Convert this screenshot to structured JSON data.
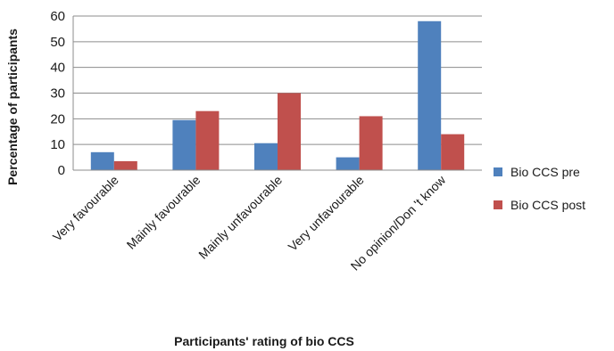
{
  "chart_data": {
    "type": "bar",
    "title": "",
    "xlabel": "Participants' rating of bio CCS",
    "ylabel": "Percentage of participants",
    "ylim": [
      0,
      60
    ],
    "yticks": [
      0,
      10,
      20,
      30,
      40,
      50,
      60
    ],
    "grid": true,
    "legend_position": "right",
    "categories": [
      "Very favourable",
      "Mainly favourable",
      "Mainly unfavourable",
      "Very unfavourable",
      "No opinion/Don 't know"
    ],
    "series": [
      {
        "name": "Bio CCS pre",
        "color": "#4f81bd",
        "values": [
          7,
          19.5,
          10.5,
          5,
          58
        ]
      },
      {
        "name": "Bio CCS post",
        "color": "#c0504d",
        "values": [
          3.5,
          23,
          30,
          21,
          14
        ]
      }
    ]
  }
}
